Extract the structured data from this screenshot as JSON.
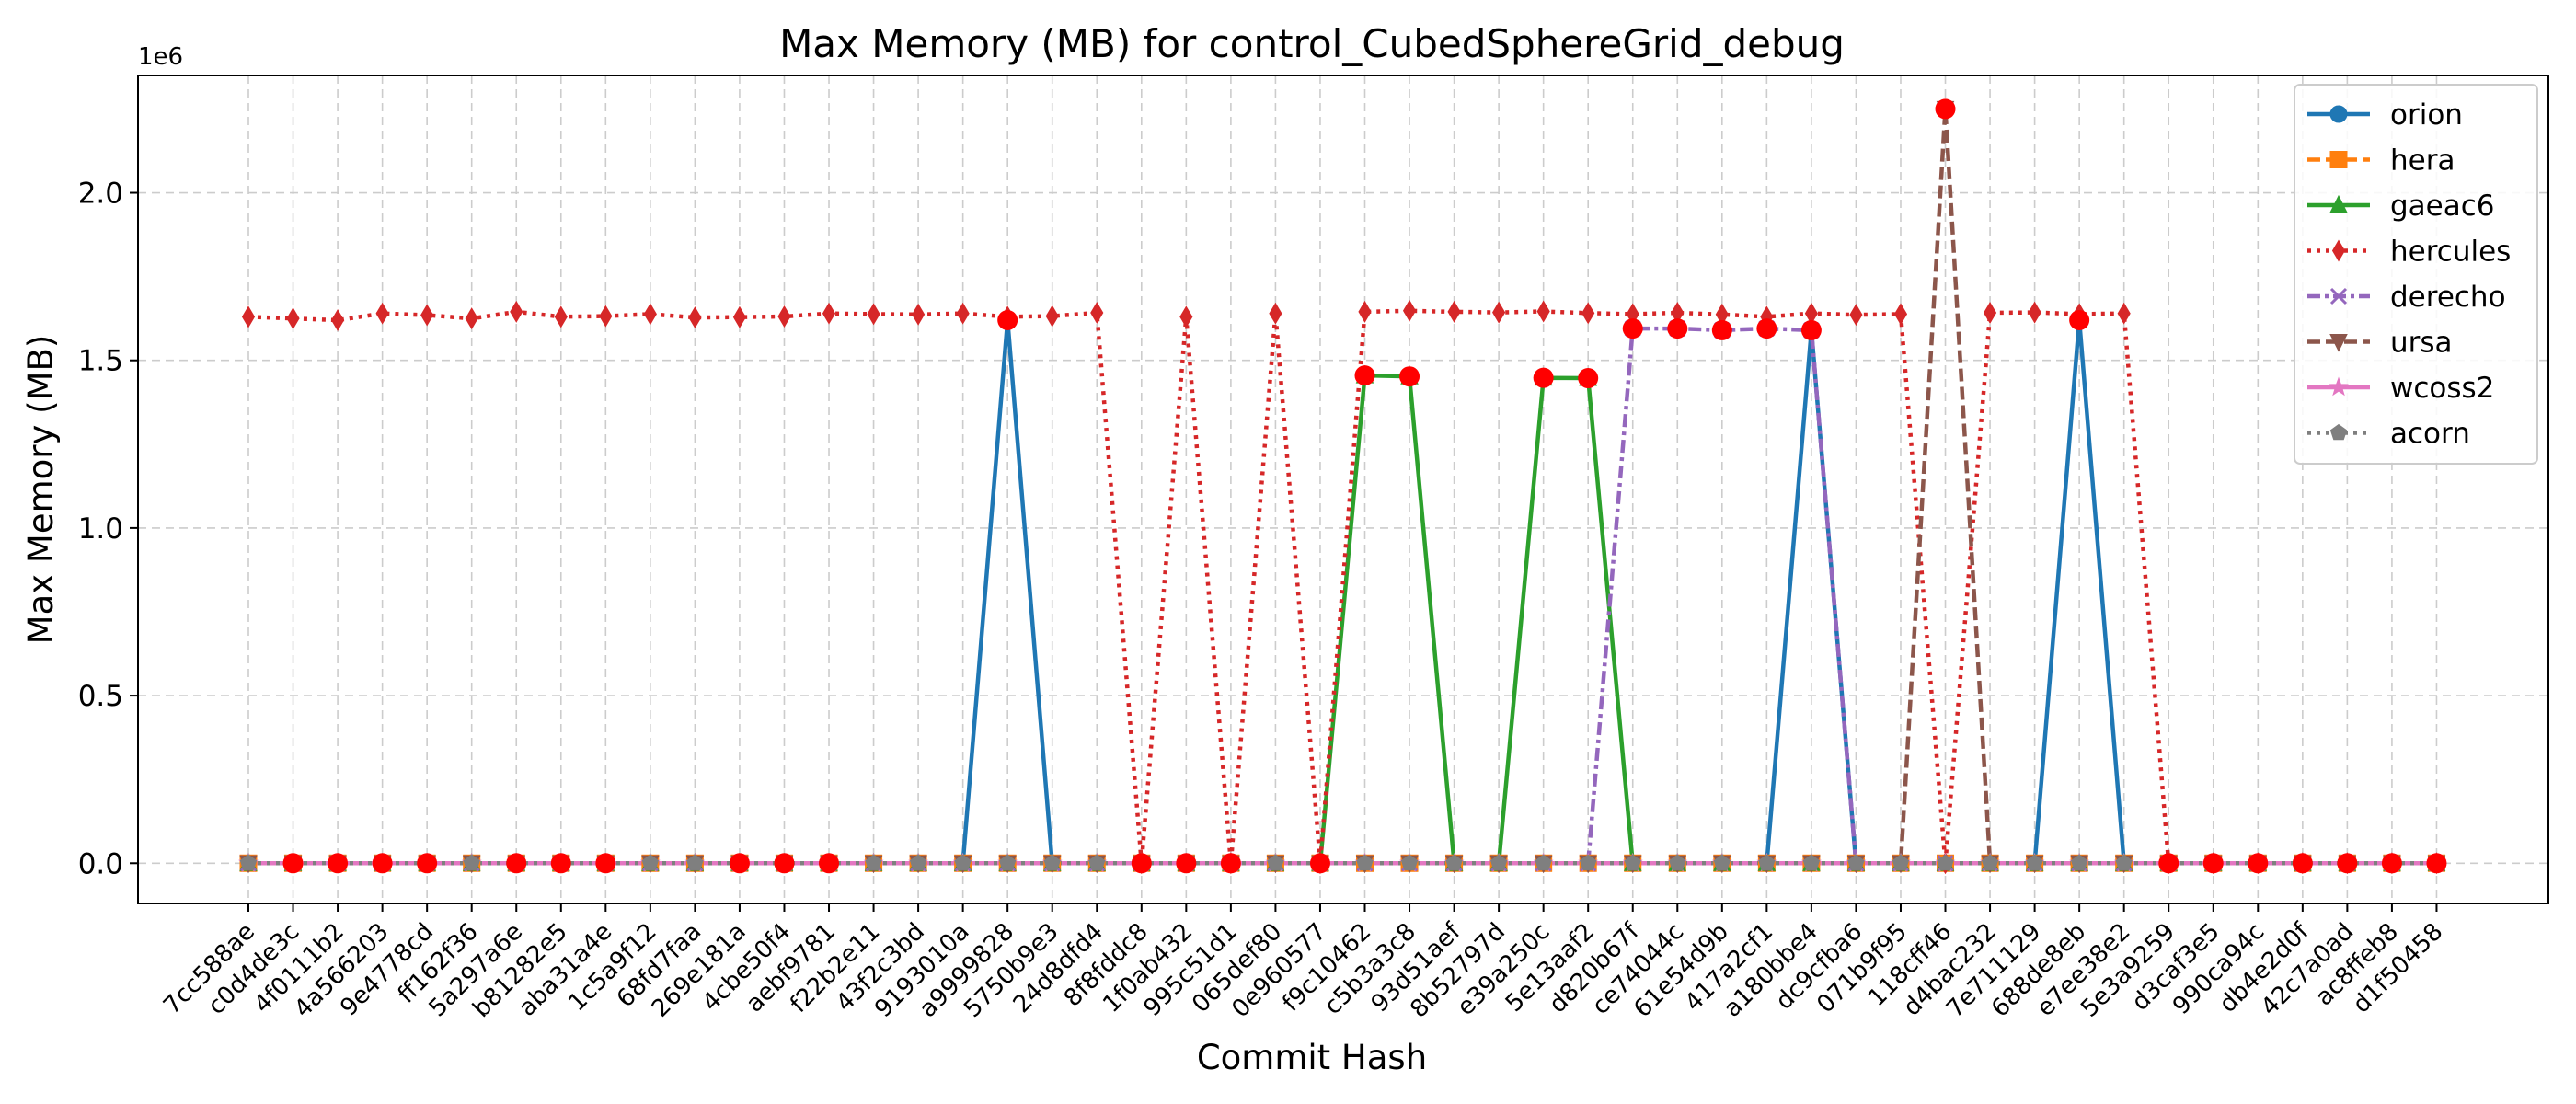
{
  "chart_data": {
    "type": "line",
    "title": "Max Memory (MB) for control_CubedSphereGrid_debug",
    "xlabel": "Commit Hash",
    "ylabel": "Max Memory (MB)",
    "y_scale_label": "1e6",
    "y_scale": 1000000,
    "ylim": [
      -120000,
      2350000
    ],
    "y_ticks": [
      0,
      500000,
      1000000,
      1500000,
      2000000
    ],
    "y_tick_labels": [
      "0.0",
      "0.5",
      "1.0",
      "1.5",
      "2.0"
    ],
    "grid": true,
    "legend_position": "top-right",
    "categories": [
      "7cc588ae",
      "c0d4de3c",
      "4f0111b2",
      "4a566203",
      "9e4778cd",
      "ff162f36",
      "5a297a6e",
      "b81282e5",
      "aba31a4e",
      "1c5a9f12",
      "68fd7faa",
      "269e181a",
      "4cbe50f4",
      "aebf9781",
      "f22b2e11",
      "43f2c3bd",
      "9193010a",
      "a9999828",
      "5750b9e3",
      "24d8dfd4",
      "8f8fddc8",
      "1f0ab432",
      "995c51d1",
      "065def80",
      "0e960577",
      "f9c10462",
      "c5b3a3c8",
      "93d51aef",
      "8b52797d",
      "e39a250c",
      "5e13aaf2",
      "d820b67f",
      "ce74044c",
      "61e54d9b",
      "417a2cf1",
      "a180bbe4",
      "dc9cfba6",
      "071b9f95",
      "118cff46",
      "d4bac232",
      "7e711129",
      "688de8eb",
      "e7ee38e2",
      "5e3a9259",
      "d3caf3e5",
      "990ca94c",
      "db4e2d0f",
      "42c7a0ad",
      "ac8ffeb8",
      "d1f50458"
    ],
    "series": [
      {
        "name": "orion",
        "color": "#1f77b4",
        "dash": "solid",
        "marker": "circle",
        "values": [
          0,
          0,
          0,
          0,
          0,
          0,
          0,
          0,
          0,
          0,
          0,
          0,
          0,
          0,
          0,
          0,
          0,
          1620000,
          0,
          0,
          0,
          0,
          0,
          0,
          0,
          0,
          0,
          0,
          0,
          0,
          0,
          0,
          0,
          0,
          0,
          1590000,
          0,
          0,
          0,
          0,
          0,
          1620000,
          0,
          0,
          0,
          0,
          0,
          0,
          0,
          0
        ]
      },
      {
        "name": "hera",
        "color": "#ff7f0e",
        "dash": "dashed",
        "marker": "square",
        "values": [
          0,
          0,
          0,
          0,
          0,
          0,
          0,
          0,
          0,
          0,
          0,
          0,
          0,
          0,
          0,
          0,
          0,
          0,
          0,
          0,
          0,
          0,
          0,
          0,
          0,
          0,
          0,
          0,
          0,
          0,
          0,
          0,
          0,
          0,
          0,
          0,
          0,
          0,
          0,
          0,
          0,
          0,
          0,
          0,
          0,
          0,
          0,
          0,
          0,
          0
        ]
      },
      {
        "name": "gaeac6",
        "color": "#2ca02c",
        "dash": "solid",
        "marker": "triangle-up",
        "values": [
          0,
          0,
          0,
          0,
          0,
          0,
          0,
          0,
          0,
          0,
          0,
          0,
          0,
          0,
          0,
          0,
          0,
          0,
          0,
          0,
          0,
          0,
          0,
          0,
          0,
          1455000,
          1452000,
          0,
          0,
          1448000,
          1447000,
          0,
          0,
          0,
          0,
          0,
          0,
          0,
          0,
          0,
          0,
          0,
          0,
          0,
          0,
          0,
          0,
          0,
          0,
          0
        ]
      },
      {
        "name": "hercules",
        "color": "#d62728",
        "dash": "dotted",
        "marker": "thin-diamond",
        "values": [
          1630000,
          1625000,
          1620000,
          1640000,
          1635000,
          1625000,
          1645000,
          1630000,
          1632000,
          1638000,
          1628000,
          1629000,
          1631000,
          1640000,
          1638000,
          1637000,
          1640000,
          1630000,
          1632000,
          1642000,
          0,
          1630000,
          0,
          1640000,
          0,
          1645000,
          1648000,
          1645000,
          1643000,
          1646000,
          1641000,
          1638000,
          1642000,
          1637000,
          1630000,
          1640000,
          1636000,
          1638000,
          0,
          1642000,
          1643000,
          1638000,
          1640000,
          0,
          0,
          0,
          0,
          0,
          0,
          0
        ]
      },
      {
        "name": "derecho",
        "color": "#9467bd",
        "dash": "dashdot",
        "marker": "x",
        "values": [
          0,
          0,
          0,
          0,
          0,
          0,
          0,
          0,
          0,
          0,
          0,
          0,
          0,
          0,
          0,
          0,
          0,
          0,
          0,
          0,
          0,
          0,
          0,
          0,
          0,
          0,
          0,
          0,
          0,
          0,
          0,
          1595000,
          1595000,
          1590000,
          1595000,
          1590000,
          0,
          0,
          0,
          0,
          0,
          0,
          0,
          0,
          0,
          0,
          0,
          0,
          0,
          0
        ]
      },
      {
        "name": "ursa",
        "color": "#8c564b",
        "dash": "dashed",
        "marker": "triangle-down",
        "values": [
          0,
          0,
          0,
          0,
          0,
          0,
          0,
          0,
          0,
          0,
          0,
          0,
          0,
          0,
          0,
          0,
          0,
          0,
          0,
          0,
          0,
          0,
          0,
          0,
          0,
          0,
          0,
          0,
          0,
          0,
          0,
          0,
          0,
          0,
          0,
          0,
          0,
          0,
          2250000,
          0,
          0,
          0,
          0,
          0,
          0,
          0,
          0,
          0,
          0,
          0
        ]
      },
      {
        "name": "wcoss2",
        "color": "#e377c2",
        "dash": "solid",
        "marker": "star",
        "values": [
          0,
          0,
          0,
          0,
          0,
          0,
          0,
          0,
          0,
          0,
          0,
          0,
          0,
          0,
          0,
          0,
          0,
          0,
          0,
          0,
          0,
          0,
          0,
          0,
          0,
          0,
          0,
          0,
          0,
          0,
          0,
          0,
          0,
          0,
          0,
          0,
          0,
          0,
          0,
          0,
          0,
          0,
          0,
          0,
          0,
          0,
          0,
          0,
          0,
          0
        ]
      },
      {
        "name": "acorn",
        "color": "#7f7f7f",
        "dash": "dotted",
        "marker": "pentagon",
        "values": [
          0,
          0,
          0,
          0,
          0,
          0,
          0,
          0,
          0,
          0,
          0,
          0,
          0,
          0,
          0,
          0,
          0,
          0,
          0,
          0,
          0,
          0,
          0,
          0,
          0,
          0,
          0,
          0,
          0,
          0,
          0,
          0,
          0,
          0,
          0,
          0,
          0,
          0,
          0,
          0,
          0,
          0,
          0,
          0,
          0,
          0,
          0,
          0,
          0,
          0
        ]
      }
    ],
    "highlight_points": {
      "color": "#ff0000",
      "points": [
        [
          1,
          0
        ],
        [
          2,
          0
        ],
        [
          3,
          0
        ],
        [
          4,
          0
        ],
        [
          6,
          0
        ],
        [
          7,
          0
        ],
        [
          8,
          0
        ],
        [
          11,
          0
        ],
        [
          12,
          0
        ],
        [
          13,
          0
        ],
        [
          17,
          1620000
        ],
        [
          20,
          0
        ],
        [
          21,
          0
        ],
        [
          22,
          0
        ],
        [
          24,
          0
        ],
        [
          25,
          1455000
        ],
        [
          26,
          1452000
        ],
        [
          29,
          1448000
        ],
        [
          30,
          1447000
        ],
        [
          31,
          1595000
        ],
        [
          32,
          1595000
        ],
        [
          33,
          1590000
        ],
        [
          34,
          1595000
        ],
        [
          35,
          1590000
        ],
        [
          38,
          2250000
        ],
        [
          41,
          1620000
        ],
        [
          43,
          0
        ],
        [
          44,
          0
        ],
        [
          45,
          0
        ],
        [
          46,
          0
        ],
        [
          47,
          0
        ],
        [
          48,
          0
        ],
        [
          49,
          0
        ]
      ]
    }
  }
}
